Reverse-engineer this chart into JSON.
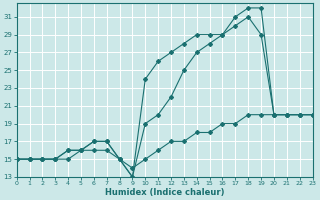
{
  "xlabel": "Humidex (Indice chaleur)",
  "bg_color": "#cce8e8",
  "grid_color": "#ffffff",
  "line_color": "#1a7070",
  "xlim": [
    0,
    23
  ],
  "ylim": [
    13,
    32.5
  ],
  "xticks": [
    0,
    1,
    2,
    3,
    4,
    5,
    6,
    7,
    8,
    9,
    10,
    11,
    12,
    13,
    14,
    15,
    16,
    17,
    18,
    19,
    20,
    21,
    22,
    23
  ],
  "yticks": [
    13,
    15,
    17,
    19,
    21,
    23,
    25,
    27,
    29,
    31
  ],
  "series": [
    {
      "x": [
        0,
        1,
        2,
        3,
        4,
        5,
        6,
        7,
        8,
        9,
        10,
        11,
        12,
        13,
        14,
        15,
        16,
        17,
        18,
        19,
        20,
        21,
        22,
        23
      ],
      "y": [
        15,
        15,
        15,
        15,
        15,
        16,
        16,
        16,
        15,
        14,
        15,
        16,
        17,
        17,
        18,
        18,
        19,
        19,
        20,
        20,
        20,
        20,
        20,
        20
      ]
    },
    {
      "x": [
        0,
        1,
        2,
        3,
        4,
        5,
        6,
        7,
        8,
        9,
        10,
        11,
        12,
        13,
        14,
        15,
        16,
        17,
        18,
        19,
        20,
        21,
        22,
        23
      ],
      "y": [
        15,
        15,
        15,
        15,
        16,
        16,
        17,
        17,
        15,
        13,
        19,
        20,
        22,
        25,
        27,
        28,
        29,
        30,
        31,
        29,
        20,
        20,
        20,
        20
      ]
    },
    {
      "x": [
        0,
        1,
        2,
        3,
        4,
        5,
        6,
        7,
        8,
        9,
        10,
        11,
        12,
        13,
        14,
        15,
        16,
        17,
        18,
        19,
        20,
        21,
        22,
        23
      ],
      "y": [
        15,
        15,
        15,
        15,
        16,
        16,
        17,
        17,
        15,
        13,
        24,
        26,
        27,
        28,
        29,
        29,
        29,
        31,
        32,
        32,
        20,
        20,
        20,
        20
      ]
    }
  ]
}
